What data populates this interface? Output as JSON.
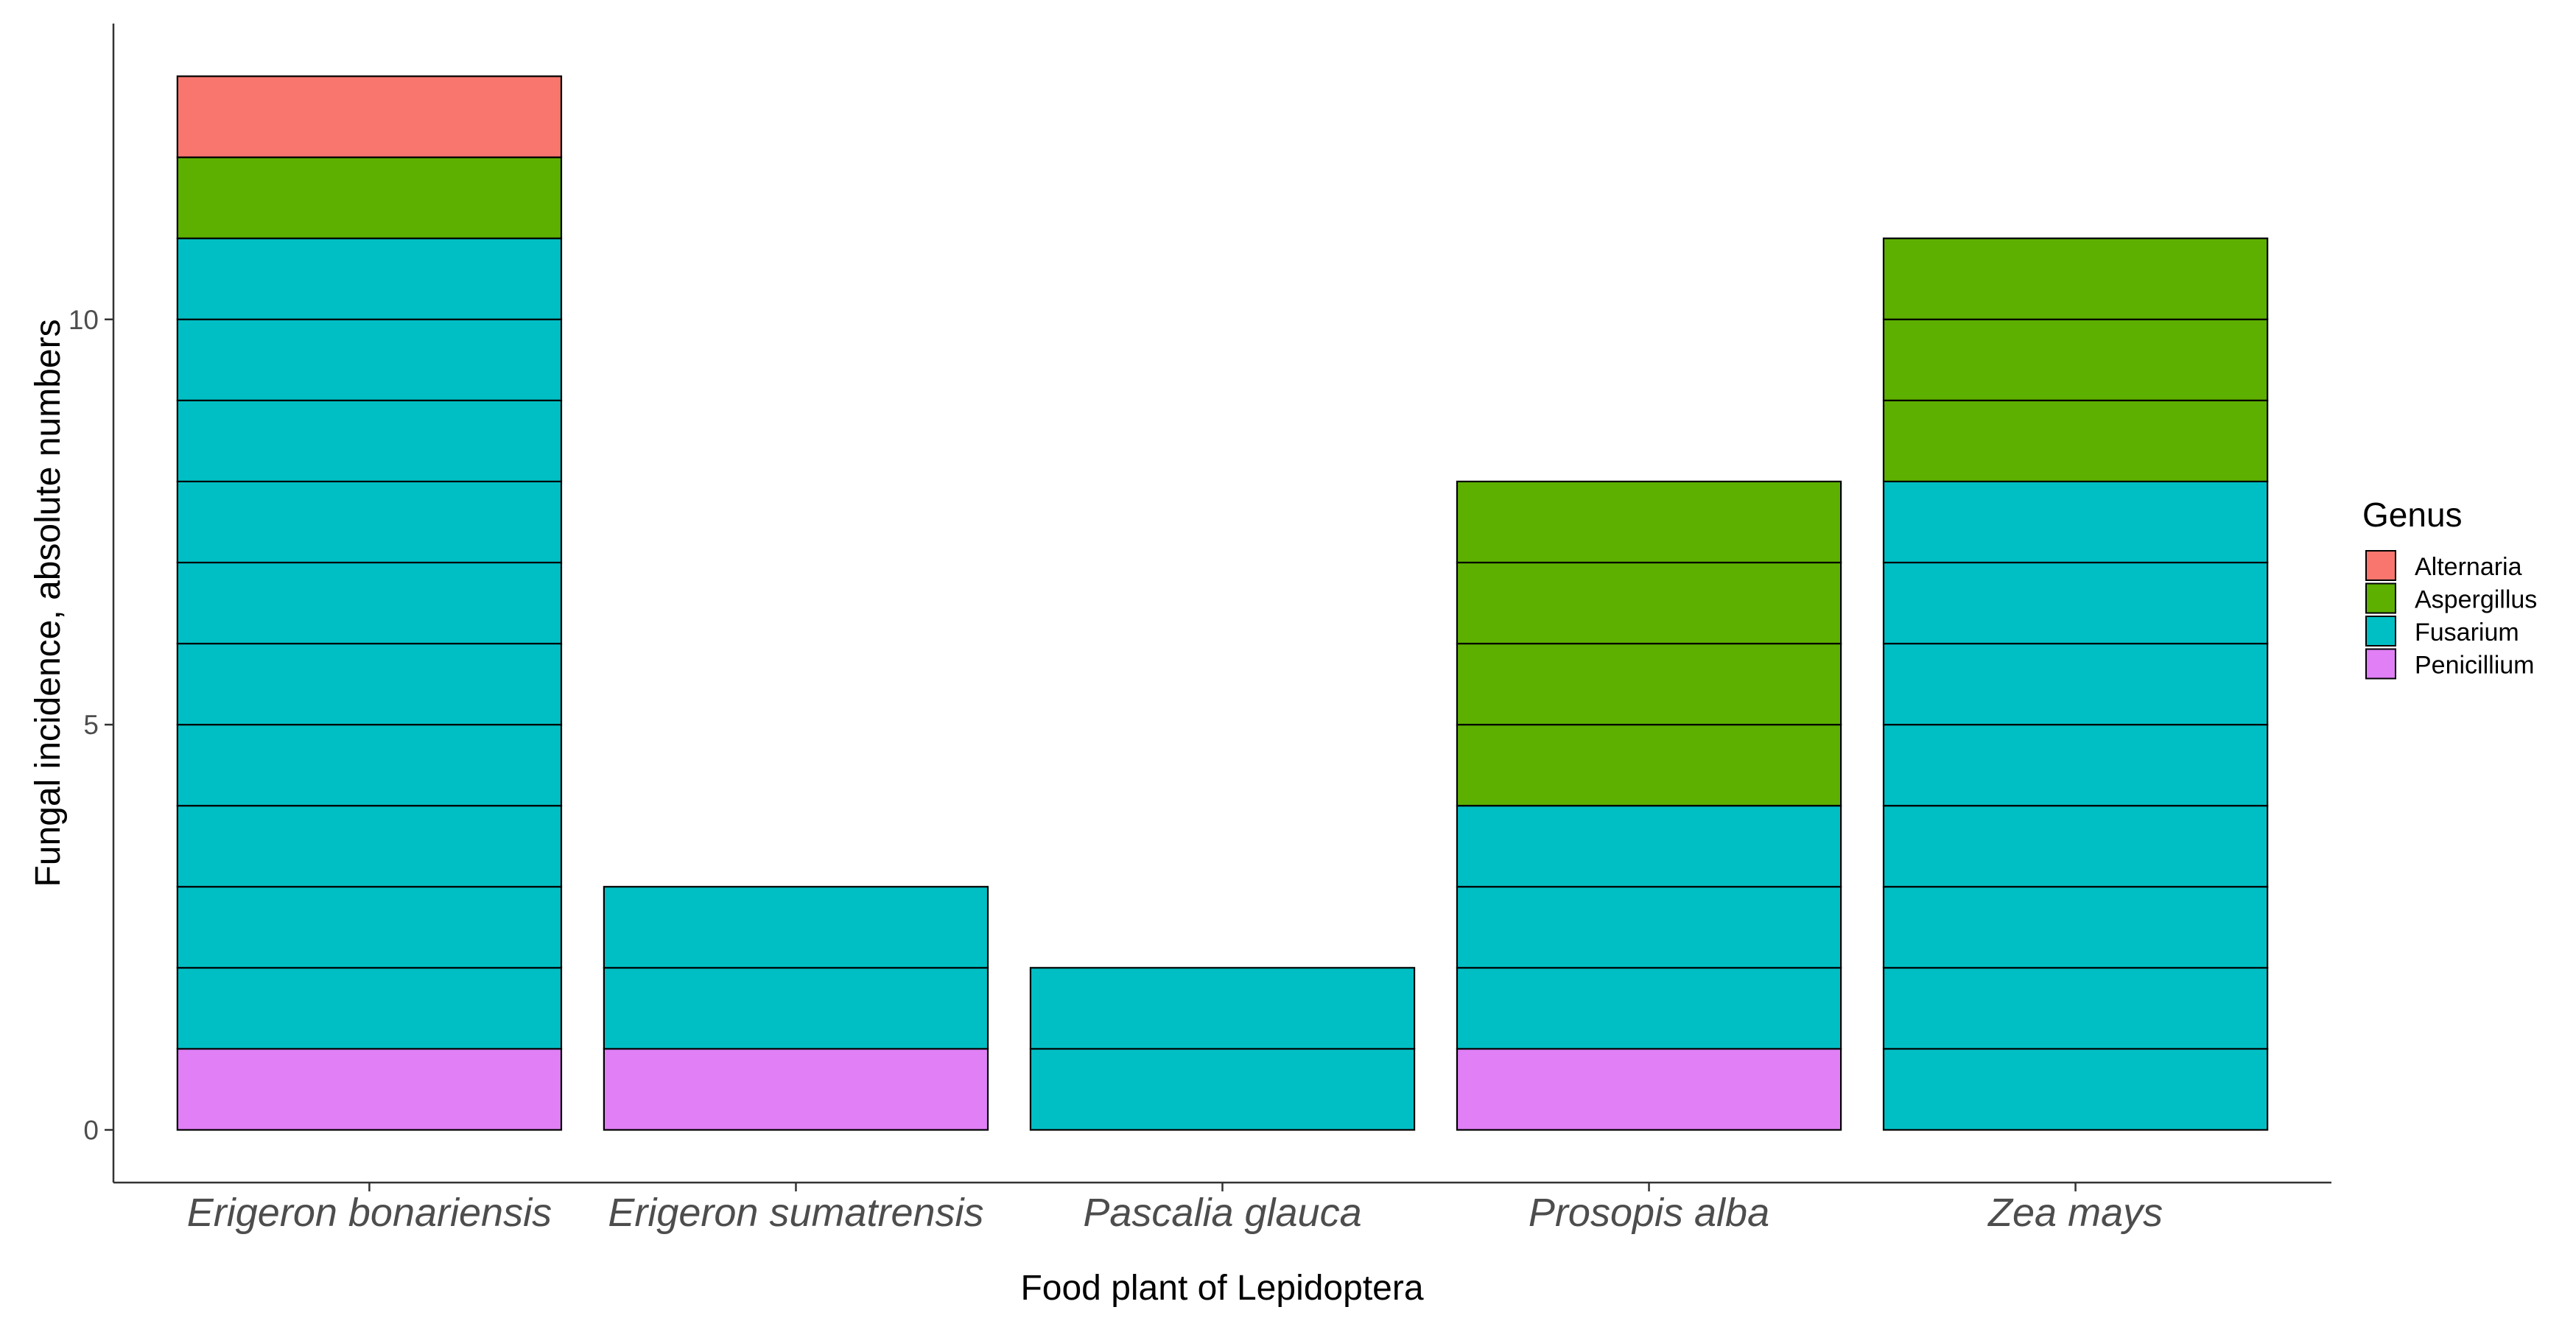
{
  "chart_data": {
    "type": "bar",
    "stacked": true,
    "categories": [
      "Erigeron bonariensis",
      "Erigeron sumatrensis",
      "Pascalia glauca",
      "Prosopis alba",
      "Zea mays"
    ],
    "series": [
      {
        "name": "Penicillium",
        "color": "#E07FF6",
        "values": [
          1,
          1,
          0,
          1,
          0
        ]
      },
      {
        "name": "Fusarium",
        "color": "#00BFC4",
        "values": [
          10,
          2,
          2,
          3,
          8
        ]
      },
      {
        "name": "Aspergillus",
        "color": "#5DB000",
        "values": [
          1,
          0,
          0,
          4,
          3
        ]
      },
      {
        "name": "Alternaria",
        "color": "#F8766D",
        "values": [
          1,
          0,
          0,
          0,
          0
        ]
      }
    ],
    "xlabel": "Food plant of Lepidoptera",
    "ylabel": "Fungal incidence, absolute numbers",
    "ylim": [
      -0.65,
      13.65
    ],
    "yticks": [
      0,
      5,
      10
    ],
    "ytick_labels": [
      "0",
      "5",
      "10"
    ],
    "segment_unit": 1,
    "grid": false,
    "legend": {
      "title": "Genus",
      "placement": "right",
      "entries": [
        "Alternaria",
        "Aspergillus",
        "Fusarium",
        "Penicillium"
      ]
    }
  }
}
